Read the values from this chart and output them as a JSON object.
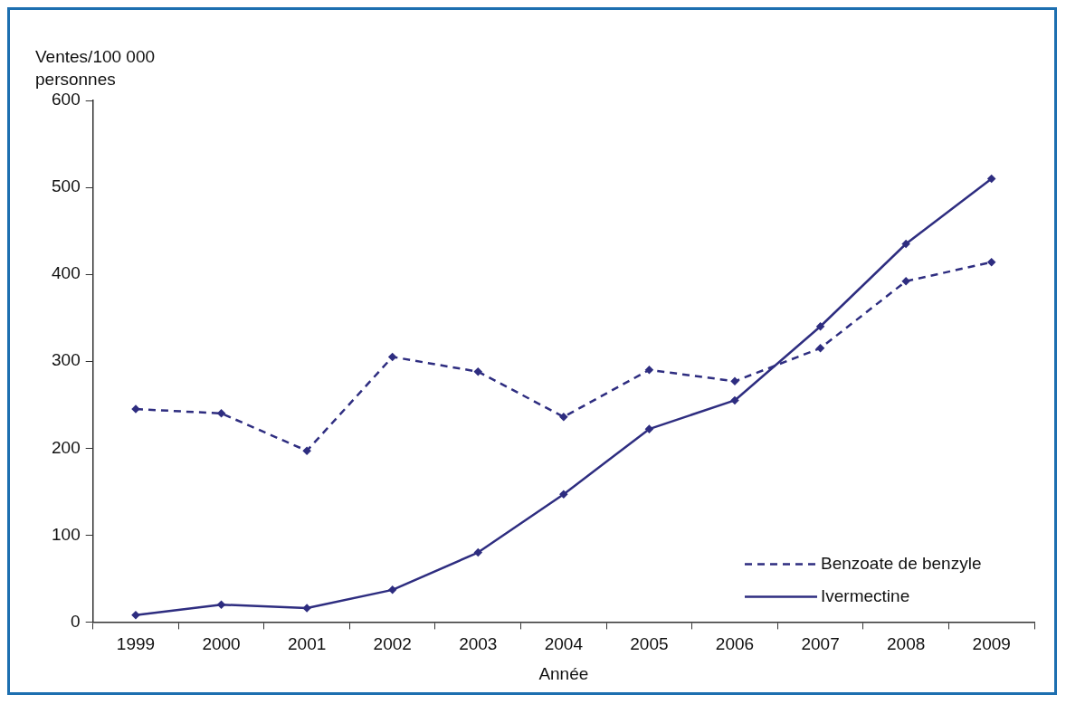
{
  "chart_data": {
    "type": "line",
    "xlabel": "Année",
    "ylabel": "Ventes/100 000 personnes",
    "categories": [
      "1999",
      "2000",
      "2001",
      "2002",
      "2003",
      "2004",
      "2005",
      "2006",
      "2007",
      "2008",
      "2009"
    ],
    "series": [
      {
        "name": "Benzoate de benzyle",
        "color": "#2e2d80",
        "line_style": "dashed",
        "values": [
          245,
          240,
          197,
          305,
          288,
          236,
          290,
          277,
          315,
          392,
          414
        ]
      },
      {
        "name": "Ivermectine",
        "color": "#2e2d80",
        "line_style": "solid",
        "values": [
          8,
          20,
          16,
          37,
          80,
          147,
          222,
          255,
          340,
          435,
          510
        ]
      }
    ],
    "ylim": [
      0,
      600
    ],
    "yticks": [
      0,
      100,
      200,
      300,
      400,
      500,
      600
    ],
    "grid": false,
    "legend": "bottom right",
    "marker": "diamond"
  }
}
